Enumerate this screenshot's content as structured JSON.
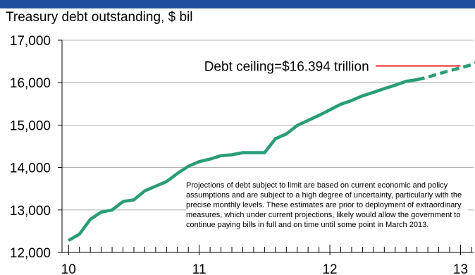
{
  "chart_data": {
    "type": "line",
    "title": "Treasury debt outstanding, $ bil",
    "xlabel": "",
    "ylabel": "",
    "xlim": [
      9.95,
      13.1
    ],
    "ylim": [
      12000,
      17000
    ],
    "yticks": [
      12000,
      13000,
      14000,
      15000,
      16000,
      17000
    ],
    "ytick_labels": [
      "12,000",
      "13,000",
      "14,000",
      "15,000",
      "16,000",
      "17,000"
    ],
    "xticks": [
      10,
      11,
      12,
      13
    ],
    "xtick_labels": [
      "10",
      "11",
      "12",
      "13"
    ],
    "grid": "horizontal",
    "series": [
      {
        "style": "solid",
        "color": "#2a9d74",
        "x": [
          10.0,
          10.083,
          10.167,
          10.25,
          10.333,
          10.417,
          10.5,
          10.583,
          10.667,
          10.75,
          10.833,
          10.917,
          11.0,
          11.083,
          11.167,
          11.25,
          11.333,
          11.417,
          11.5,
          11.583,
          11.667,
          11.75,
          11.833,
          11.917,
          12.0,
          12.083,
          12.167,
          12.25,
          12.333,
          12.417,
          12.5,
          12.583,
          12.667
        ],
        "values": [
          12280,
          12430,
          12780,
          12950,
          13000,
          13200,
          13240,
          13450,
          13560,
          13670,
          13860,
          14030,
          14140,
          14200,
          14280,
          14300,
          14350,
          14350,
          14350,
          14680,
          14790,
          14990,
          15110,
          15230,
          15360,
          15490,
          15580,
          15690,
          15770,
          15860,
          15940,
          16030,
          16070
        ]
      },
      {
        "style": "dashed",
        "color": "#2a9d74",
        "x": [
          12.667,
          12.75,
          12.833,
          12.917,
          13.0,
          13.083,
          13.167
        ],
        "values": [
          16070,
          16130,
          16210,
          16280,
          16350,
          16420,
          16540
        ]
      }
    ],
    "reference_line": {
      "color": "#e8262a",
      "value": 16394,
      "x_start": 12.35,
      "x_end": 13.0
    },
    "annotations": [
      {
        "text": "Debt ceiling=$16.394 trillion",
        "x": 12.3,
        "y": 16394
      }
    ],
    "note": "Projections of debt subject to limit are based on current economic and policy assumptions and are subject to a high degree of uncertainty, particularly with the precise monthly levels. These estimates are prior to deployment of extraordinary measures, which under current projections, likely would allow the government to continue paying bills in full and on time until some point in March 2013."
  }
}
